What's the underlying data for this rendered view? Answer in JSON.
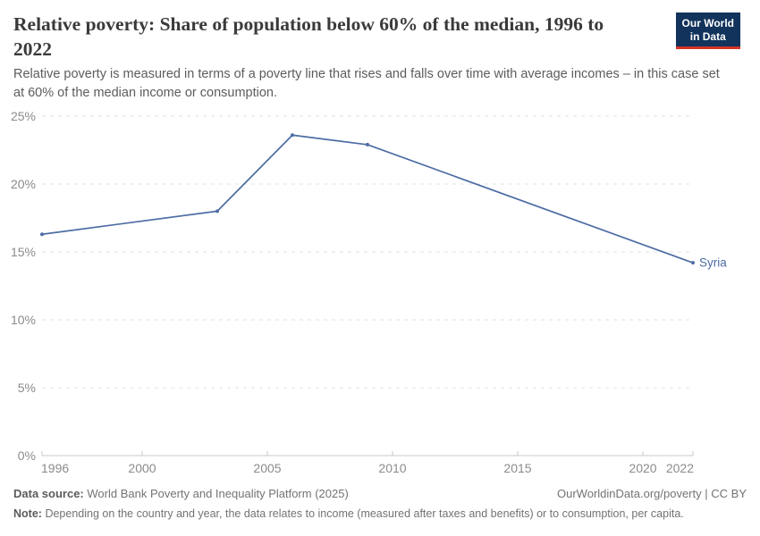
{
  "header": {
    "title": "Relative poverty: Share of population below 60% of the median, 1996 to 2022",
    "subtitle": "Relative poverty is measured in terms of a poverty line that rises and falls over time with average incomes – in this case set at 60% of the median income or consumption.",
    "logo": {
      "line1": "Our World",
      "line2": "in Data",
      "bg_color": "#12335b",
      "bar_color": "#d13328"
    }
  },
  "chart_data": {
    "type": "line",
    "x": [
      1996,
      2003,
      2006,
      2009,
      2022
    ],
    "series": [
      {
        "name": "Syria",
        "color": "#4d6da5",
        "values": [
          16.3,
          18.0,
          23.6,
          22.9,
          14.2
        ]
      }
    ],
    "xlim": [
      1996,
      2022
    ],
    "ylim": [
      0,
      25
    ],
    "x_ticks": [
      1996,
      2000,
      2005,
      2010,
      2015,
      2020,
      2022
    ],
    "y_ticks": [
      0,
      5,
      10,
      15,
      20,
      25
    ],
    "y_tick_suffix": "%",
    "grid": "dashed horizontal gridlines",
    "legend_position": "end-of-line label",
    "end_label": "Syria",
    "xlabel": "",
    "ylabel": ""
  },
  "footer": {
    "data_source_label": "Data source:",
    "data_source_value": "World Bank Poverty and Inequality Platform (2025)",
    "url": "OurWorldinData.org/poverty",
    "separator": "|",
    "license": "CC BY",
    "note_label": "Note:",
    "note_value": "Depending on the country and year, the data relates to income (measured after taxes and benefits) or to consumption, per capita."
  }
}
